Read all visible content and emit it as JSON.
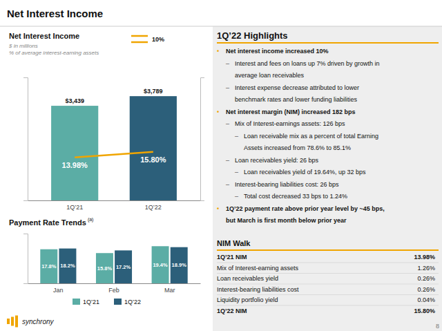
{
  "title": "Net Interest Income",
  "chart_data": [
    {
      "type": "bar",
      "title": "Net Interest Income",
      "ylabel": "$ in millions",
      "y2label": "% of average interest-earning assets",
      "categories": [
        "1Q’21",
        "1Q’22"
      ],
      "values": [
        3439,
        3789
      ],
      "value_labels": [
        "$3,439",
        "$3,789"
      ],
      "colors": [
        "#5BADA5",
        "#2C5F7A"
      ],
      "ylim": [
        0,
        4471.02
      ],
      "series": [
        {
          "name": "10%",
          "type": "line",
          "axis": "y2",
          "color": "#F0A500",
          "values": [
            13.98,
            15.8
          ],
          "value_labels": [
            "13.98%",
            "15.80%"
          ]
        }
      ],
      "y2lim": [
        0,
        40
      ],
      "data_labels": true,
      "tick_labels": "x",
      "legend": "upper right"
    },
    {
      "type": "bar",
      "title": "Payment Rate Trends",
      "annotations": [
        "(a)"
      ],
      "categories": [
        "Jan",
        "Feb",
        "Mar"
      ],
      "series": [
        {
          "name": "1Q’21",
          "color": "#5BADA5",
          "values": [
            17.8,
            15.8,
            19.4
          ],
          "value_labels": [
            "17.8%",
            "15.8%",
            "19.4%"
          ]
        },
        {
          "name": "1Q’22",
          "color": "#2C5F7A",
          "values": [
            18.2,
            17.2,
            18.9
          ],
          "value_labels": [
            "18.2%",
            "17.2%",
            "18.9%"
          ]
        }
      ],
      "ylim": [
        0,
        26
      ],
      "data_labels": true,
      "tick_labels": "x",
      "legend": "lower center"
    }
  ],
  "highlights": {
    "title": "1Q’22 Highlights",
    "color": "#F0A500",
    "items": [
      {
        "level": 0,
        "prefix": "•",
        "bold": true,
        "text": "Net interest income increased 10%"
      },
      {
        "level": 1,
        "prefix": "–",
        "bold": false,
        "text": "Interest and fees on loans up 7% driven by growth in"
      },
      {
        "level": 1,
        "bold": false,
        "text": "average loan receivables"
      },
      {
        "level": 1,
        "prefix": "–",
        "bold": false,
        "text": "Interest expense decrease attributed to lower"
      },
      {
        "level": 1,
        "bold": false,
        "text": "benchmark rates and lower funding liabilities"
      },
      {
        "level": 0,
        "prefix": "•",
        "bold": true,
        "text": "Net interest margin (NIM) increased 182 bps"
      },
      {
        "level": 1,
        "prefix": "–",
        "bold": false,
        "text": "Mix of Interest-earnings assets: 126 bps"
      },
      {
        "level": 2,
        "prefix": "–",
        "bold": false,
        "text": "Loan receivable mix as a percent of total Earning"
      },
      {
        "level": 2,
        "bold": false,
        "text": "Assets increased from 78.6% to 85.1%"
      },
      {
        "level": 1,
        "prefix": "–",
        "bold": false,
        "text": "Loan receivables yield:  26 bps"
      },
      {
        "level": 2,
        "prefix": "–",
        "bold": false,
        "text": "Loan receivables yield of 19.64%, up 32 bps"
      },
      {
        "level": 1,
        "prefix": "–",
        "bold": false,
        "text": "Interest-bearing liabilities cost: 26 bps"
      },
      {
        "level": 2,
        "prefix": "–",
        "bold": false,
        "text": "Total cost decreased 33 bps to 1.24%"
      },
      {
        "level": 0,
        "prefix": "•",
        "bold": true,
        "text": "1Q’22 payment rate above prior year level by ~45 bps,"
      },
      {
        "level": 0,
        "bold": true,
        "text": "but March is first month below prior year"
      }
    ]
  },
  "nim_walk": {
    "title": "NIM Walk",
    "color": "#F0A500",
    "rows": [
      {
        "label": "1Q’21 NIM",
        "value": "13.98%",
        "bold": true
      },
      {
        "label": "Mix of Interest-earning assets",
        "value": "1.26%",
        "bold": false
      },
      {
        "label": "Loan receivables yield",
        "value": "0.26%",
        "bold": false
      },
      {
        "label": "Interest-bearing liabilities cost",
        "value": "0.26%",
        "bold": false
      },
      {
        "label": "Liquidity portfolio yield",
        "value": "0.04%",
        "bold": false
      },
      {
        "label": "1Q’22 NIM",
        "value": "15.80%",
        "bold": true
      }
    ]
  },
  "logo": {
    "text": "synchrony",
    "color": "#F0A500"
  },
  "page_number": "8"
}
